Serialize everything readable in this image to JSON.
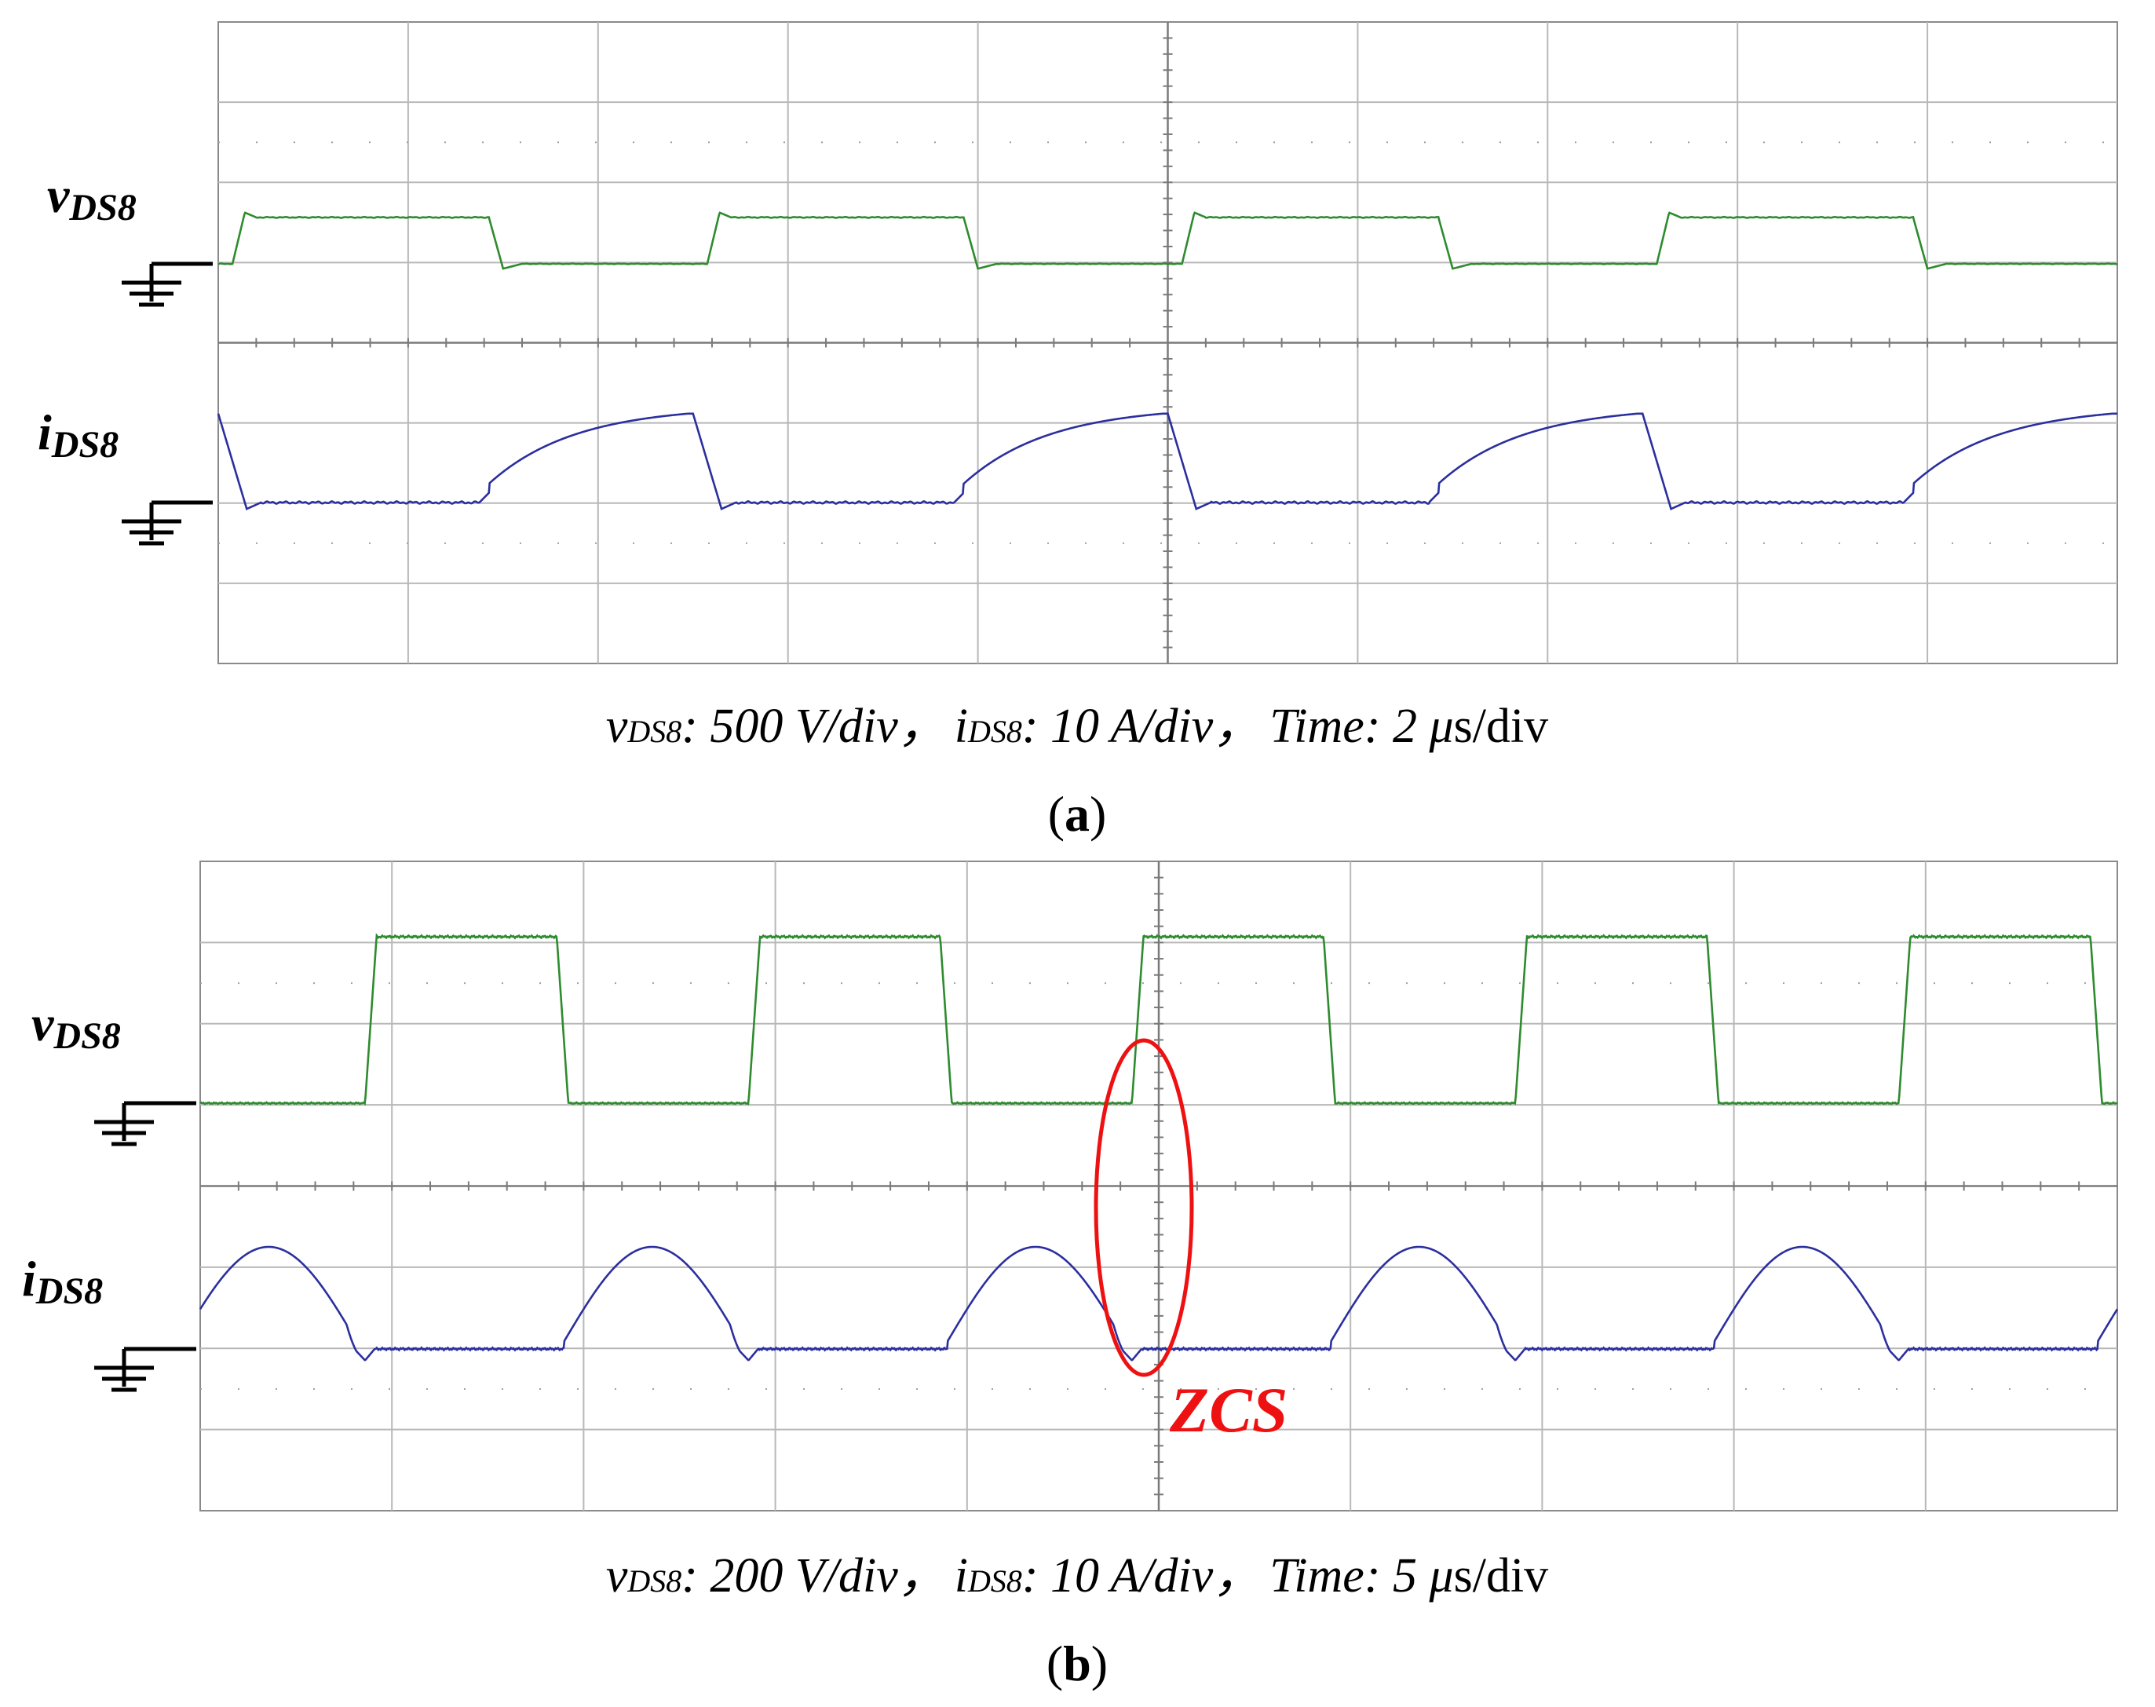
{
  "colors": {
    "voltage": "#2e8b2e",
    "current": "#2b2f9e",
    "grid": "#b8b8b8",
    "frame": "#8a8a8a",
    "annotation": "#ee1111",
    "ground": "#000000"
  },
  "chart_data": [
    {
      "type": "line",
      "panel_label": "a",
      "caption": {
        "v_sym": "v",
        "v_sub": "DS8",
        "v_scale": ": 500 V/div，",
        "i_sym": "i",
        "i_sub": "DS8",
        "i_scale": ": 10 A/div，",
        "time_text": "Time: 2 ",
        "mu": "μ",
        "time_unit": "s/div"
      },
      "grid": true,
      "time_per_div_us": 2,
      "time_range_us": [
        0,
        20
      ],
      "v_channel": {
        "sym": "v",
        "sub": "DS8",
        "volts_per_div": 500,
        "period_us": 5.0,
        "rise_us": 0.13,
        "fall_us": 2.7,
        "high_V": 290,
        "overshoot_V": 320,
        "undershoot_V": -30
      },
      "i_channel": {
        "sym": "i",
        "sub": "DS8",
        "amps_per_div": 10,
        "shape": "charging",
        "period_us": 5.0,
        "start_us": 2.6,
        "end_us": 4.8,
        "peak_A": 11.1,
        "step_A": 1.2,
        "fall_end_us": 5.15,
        "undershoot_A": -0.8
      }
    },
    {
      "type": "line",
      "panel_label": "b",
      "caption": {
        "v_sym": "v",
        "v_sub": "DS8",
        "v_scale": ": 200 V/div，",
        "i_sym": "i",
        "i_sub": "DS8",
        "i_scale": ": 10 A/div，",
        "time_text": "Time: 5 ",
        "mu": "μ",
        "time_unit": "s/div"
      },
      "annotation": "ZCS",
      "grid": true,
      "time_per_div_us": 5,
      "time_range_us": [
        0,
        50
      ],
      "v_channel": {
        "sym": "v",
        "sub": "DS8",
        "volts_per_div": 200,
        "period_us": 10.0,
        "rise_start_us": 4.3,
        "rise_end_us": 4.6,
        "fall_start_us": 9.3,
        "fall_end_us": 9.6,
        "high_V": 400
      },
      "i_channel": {
        "sym": "i",
        "sub": "DS8",
        "amps_per_div": 10,
        "shape": "half-sine",
        "period_us": 10.0,
        "start_us": 9.5,
        "end_us": 14.3,
        "peak_A": 12.5,
        "step_A": 1.0,
        "undershoot_A": -1.4
      }
    }
  ]
}
